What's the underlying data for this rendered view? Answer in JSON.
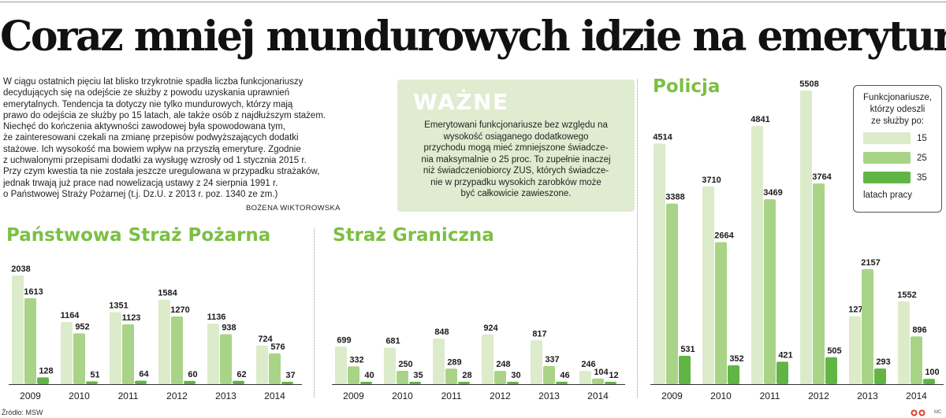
{
  "headline": "Coraz mniej mundurowych idzie na emerytury",
  "lead": {
    "lines": [
      "W ciągu ostatnich pięciu lat blisko trzykrotnie spadła liczba funkcjonariuszy",
      "decydujących się na odejście ze służby z powodu uzyskania uprawnień",
      "emerytalnych. Tendencja ta dotyczy nie tylko mundurowych, którzy mają",
      "prawo do odejścia ze służby po 15 latach, ale także osób z najdłuższym stażem.",
      "Niechęć do kończenia aktywności zawodowej była spowodowana tym,",
      "że zainteresowani czekali na zmianę przepisów podwyższających dodatki",
      "stażowe. Ich wysokość ma bowiem wpływ na przyszłą emeryturę. Zgodnie",
      "z uchwalonymi przepisami dodatki za wysługę wzrosły od 1 stycznia 2015 r.",
      "Przy czym kwestia ta nie została jeszcze uregulowana w przypadku strażaków,",
      "jednak trwają już prace nad nowelizacją ustawy z 24 sierpnia 1991 r.",
      "o Państwowej Straży Pożarnej (t.j. Dz.U. z 2013 r. poz. 1340 ze zm.)"
    ],
    "author": "BOŻENA WIKTOROWSKA"
  },
  "wazne": {
    "title": "WAŻNE",
    "lines": [
      "Emerytowani funkcjonariusze bez względu na",
      "wysokość osiąganego dodatkowego",
      "przychodu mogą mieć zmniejszone świadcze-",
      "nia maksymalnie o 25 proc. To zupełnie inaczej",
      "niż świadczeniobiorcy ZUS, których świadcze-",
      "nie w przypadku wysokich zarobków może",
      "być całkowicie zawieszone."
    ]
  },
  "legend": {
    "title_lines": [
      "Funkcjonariusze,",
      "którzy odeszli",
      "ze służby po:"
    ],
    "items": [
      {
        "label": "15",
        "color": "#dcebc9"
      },
      {
        "label": "25",
        "color": "#a9d386"
      },
      {
        "label": "35",
        "color": "#61b545"
      }
    ],
    "footer": "latach pracy"
  },
  "colors": {
    "accent": "#7cbf44",
    "box_bg": "#e0ecd0",
    "s15": "#dcebc9",
    "s25": "#a9d386",
    "s35": "#61b545"
  },
  "source": "Źródło: MSW",
  "credit": "MC",
  "chart_data": [
    {
      "type": "bar",
      "title": "Państwowa Straż Pożarna",
      "categories": [
        "2009",
        "2010",
        "2011",
        "2012",
        "2013",
        "2014"
      ],
      "series": [
        {
          "name": "15",
          "values": [
            2038,
            1164,
            1351,
            1584,
            1136,
            724
          ]
        },
        {
          "name": "25",
          "values": [
            1613,
            952,
            1123,
            1270,
            938,
            576
          ]
        },
        {
          "name": "35",
          "values": [
            128,
            51,
            64,
            60,
            62,
            37
          ]
        }
      ]
    },
    {
      "type": "bar",
      "title": "Straż Graniczna",
      "categories": [
        "2009",
        "2010",
        "2011",
        "2012",
        "2013",
        "2014"
      ],
      "series": [
        {
          "name": "15",
          "values": [
            699,
            681,
            848,
            924,
            817,
            246
          ]
        },
        {
          "name": "25",
          "values": [
            332,
            250,
            289,
            248,
            337,
            104
          ]
        },
        {
          "name": "35",
          "values": [
            40,
            35,
            28,
            30,
            46,
            12
          ]
        }
      ]
    },
    {
      "type": "bar",
      "title": "Policja",
      "categories": [
        "2009",
        "2010",
        "2011",
        "2012",
        "2013",
        "2014"
      ],
      "series": [
        {
          "name": "15",
          "values": [
            4514,
            3710,
            4841,
            5508,
            1274,
            1552
          ]
        },
        {
          "name": "25",
          "values": [
            3388,
            2664,
            3469,
            3764,
            2157,
            896
          ]
        },
        {
          "name": "35",
          "values": [
            531,
            352,
            421,
            505,
            293,
            100
          ]
        }
      ]
    }
  ]
}
